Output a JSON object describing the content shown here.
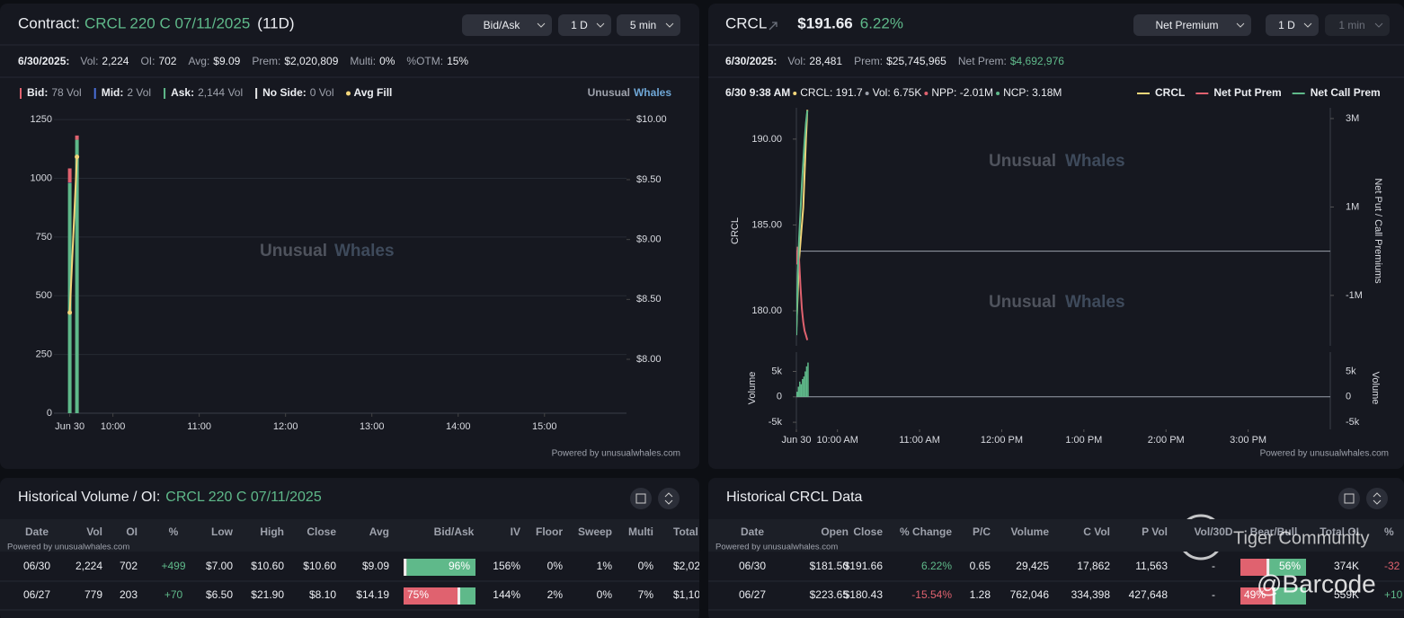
{
  "contract_panel": {
    "label": "Contract:",
    "symbol": "CRCL 220 C 07/11/2025",
    "dte": "(11D)",
    "buttons": [
      "Bid/Ask",
      "1 D",
      "5 min"
    ],
    "date": "6/30/2025:",
    "stats": [
      {
        "label": "Vol:",
        "value": "2,224"
      },
      {
        "label": "OI:",
        "value": "702"
      },
      {
        "label": "Avg:",
        "value": "$9.09"
      },
      {
        "label": "Prem:",
        "value": "$2,020,809"
      },
      {
        "label": "Multi:",
        "value": "0%"
      },
      {
        "label": "%OTM:",
        "value": "15%"
      }
    ],
    "brand": [
      "Unusual",
      "Whales"
    ],
    "watermark": [
      "Unusual",
      "Whales"
    ],
    "footer": "Powered by unusualwhales.com"
  },
  "stock_panel": {
    "symbol": "CRCL",
    "price": "$191.66",
    "change": "6.22%",
    "buttons": [
      "Net Premium",
      "1 D",
      "1 min"
    ],
    "date": "6/30/2025:",
    "stats": [
      {
        "label": "Vol:",
        "value": "28,481"
      },
      {
        "label": "Prem:",
        "value": "$25,745,965"
      },
      {
        "label": "Net Prem:",
        "value": "$4,692,976"
      }
    ],
    "info": [
      "6/30 9:38 AM",
      "CRCL: 191.7",
      "Vol: 6.75K",
      "NPP: -2.01M",
      "NCP: 3.18M"
    ],
    "watermark": [
      "Unusual",
      "Whales"
    ],
    "footer": "Powered by unusualwhales.com"
  },
  "chart_data": [
    {
      "type": "bar",
      "x": [
        0,
        5
      ],
      "xlim": [
        -11,
        387
      ],
      "xticks": [
        {
          "value": 0,
          "label": "Jun 30"
        },
        {
          "value": 30,
          "label": "10:00"
        },
        {
          "value": 90,
          "label": "11:00"
        },
        {
          "value": 150,
          "label": "12:00"
        },
        {
          "value": 210,
          "label": "13:00"
        },
        {
          "value": 270,
          "label": "14:00"
        },
        {
          "value": 330,
          "label": "15:00"
        }
      ],
      "ylim": [
        0,
        1300
      ],
      "yticks": [
        0,
        250,
        500,
        750,
        1000,
        1250
      ],
      "y2lim": [
        7.55,
        10.1
      ],
      "y2ticks": [
        {
          "value": 8,
          "label": "$8.00"
        },
        {
          "value": 8.5,
          "label": "$8.50"
        },
        {
          "value": 9,
          "label": "$9.00"
        },
        {
          "value": 9.5,
          "label": "$9.50"
        },
        {
          "value": 10,
          "label": "$10.00"
        }
      ],
      "grid": true,
      "series": [
        {
          "name": "Bid:",
          "total_label": "78 Vol",
          "color": "#e0626f",
          "values": [
            60,
            18
          ]
        },
        {
          "name": "Mid:",
          "total_label": "2 Vol",
          "color": "#4a6fd8",
          "values": [
            2,
            0
          ]
        },
        {
          "name": "Ask:",
          "total_label": "2,144 Vol",
          "color": "#5fb98a",
          "values": [
            980,
            1164
          ]
        },
        {
          "name": "No Side:",
          "total_label": "0 Vol",
          "color": "#e6e6e6",
          "values": [
            0,
            0
          ]
        },
        {
          "name": "Avg Fill",
          "color": "#f3d67a",
          "axis": "y2",
          "values": [
            8.39,
            9.69
          ]
        }
      ]
    },
    {
      "type": "line",
      "x": [
        0,
        1,
        2,
        3,
        4,
        5,
        6,
        7,
        8
      ],
      "xlim": [
        0,
        390
      ],
      "xticks": [
        {
          "value": 0,
          "label": "Jun 30"
        },
        {
          "value": 30,
          "label": "10:00 AM"
        },
        {
          "value": 90,
          "label": "11:00 AM"
        },
        {
          "value": 150,
          "label": "12:00 PM"
        },
        {
          "value": 210,
          "label": "1:00 PM"
        },
        {
          "value": 270,
          "label": "2:00 PM"
        },
        {
          "value": 330,
          "label": "3:00 PM"
        }
      ],
      "ylabel": "CRCL",
      "ylim": [
        177.96,
        191.3
      ],
      "yticks": [
        {
          "value": 180,
          "label": "180.00"
        },
        {
          "value": 185,
          "label": "185.00"
        },
        {
          "value": 190,
          "label": "190.00"
        }
      ],
      "y2label": "Net Put / Call Premiums",
      "y2lim": [
        -2140000,
        3040000
      ],
      "y2ticks": [
        {
          "value": -1000000,
          "label": "-1M"
        },
        {
          "value": 1000000,
          "label": "1M"
        },
        {
          "value": 3000000,
          "label": "3M"
        }
      ],
      "series": [
        {
          "name": "CRCL",
          "color": "#f3d67a",
          "values": [
            179,
            181,
            183,
            184,
            185,
            186,
            188,
            190,
            191.7
          ]
        },
        {
          "name": "Net Put Prem",
          "color": "#e0626f",
          "axis": "y2",
          "values": [
            -300000,
            100000,
            -200000,
            -800000,
            -1300000,
            -1600000,
            -1800000,
            -1900000,
            -2010000
          ]
        },
        {
          "name": "Net Call Prem",
          "color": "#5fb98a",
          "axis": "y2",
          "values": [
            -1900000,
            -500000,
            300000,
            900000,
            1500000,
            2000000,
            2500000,
            2900000,
            3180000
          ]
        }
      ],
      "volume": {
        "label": "Volume",
        "color": "#5fb98a",
        "values": [
          1000,
          2000,
          3000,
          2500,
          3500,
          4000,
          5000,
          6000,
          6750
        ],
        "ylim": [
          -6400,
          8800
        ],
        "yticks": [
          {
            "value": -5000,
            "label": "-5k"
          },
          {
            "value": 0,
            "label": "0"
          },
          {
            "value": 5000,
            "label": "5k"
          }
        ]
      }
    }
  ],
  "volume_table": {
    "title": "Historical Volume / OI:",
    "symbol": "CRCL 220 C 07/11/2025",
    "note": "Powered by unusualwhales.com",
    "columns": [
      "Date",
      "Vol",
      "OI",
      "%",
      "Low",
      "High",
      "Close",
      "Avg",
      "Bid/Ask",
      "IV",
      "Floor",
      "Sweep",
      "Multi",
      "Total"
    ],
    "rows": [
      [
        "06/30",
        "2,224",
        "702",
        "+499",
        "$7.00",
        "$10.60",
        "$10.60",
        "$9.09",
        {
          "value": 96,
          "label": "96%",
          "color": "#5fb98a"
        },
        "156%",
        "0%",
        "1%",
        "0%",
        "$2,02"
      ],
      [
        "06/27",
        "779",
        "203",
        "+70",
        "$6.50",
        "$21.90",
        "$8.10",
        "$14.19",
        {
          "value": 75,
          "label": "75%",
          "color": "#e0626f"
        },
        "144%",
        "2%",
        "0%",
        "7%",
        "$1,10"
      ]
    ]
  },
  "stock_table": {
    "title": "Historical CRCL Data",
    "note": "Powered by unusualwhales.com",
    "columns": [
      "Date",
      "Open",
      "Close",
      "% Change",
      "P/C",
      "Volume",
      "C Vol",
      "P Vol",
      "Vol/30D",
      "Bear/Bull",
      "Total OI",
      "%"
    ],
    "rows": [
      [
        "06/30",
        "$181.50",
        "$191.66",
        "6.22%",
        "0.65",
        "29,425",
        "17,862",
        "11,563",
        "-",
        {
          "value": 56,
          "label": "56%",
          "color": "#5fb98a"
        },
        "374K",
        "-32"
      ],
      [
        "06/27",
        "$223.65",
        "$180.43",
        "-15.54%",
        "1.28",
        "762,046",
        "334,398",
        "427,648",
        "-",
        {
          "value": 49,
          "label": "49%",
          "color": "#e0626f"
        },
        "559K",
        "+10"
      ]
    ]
  },
  "overlay": {
    "brand": "Tiger Community",
    "handle": "@Barcode"
  }
}
